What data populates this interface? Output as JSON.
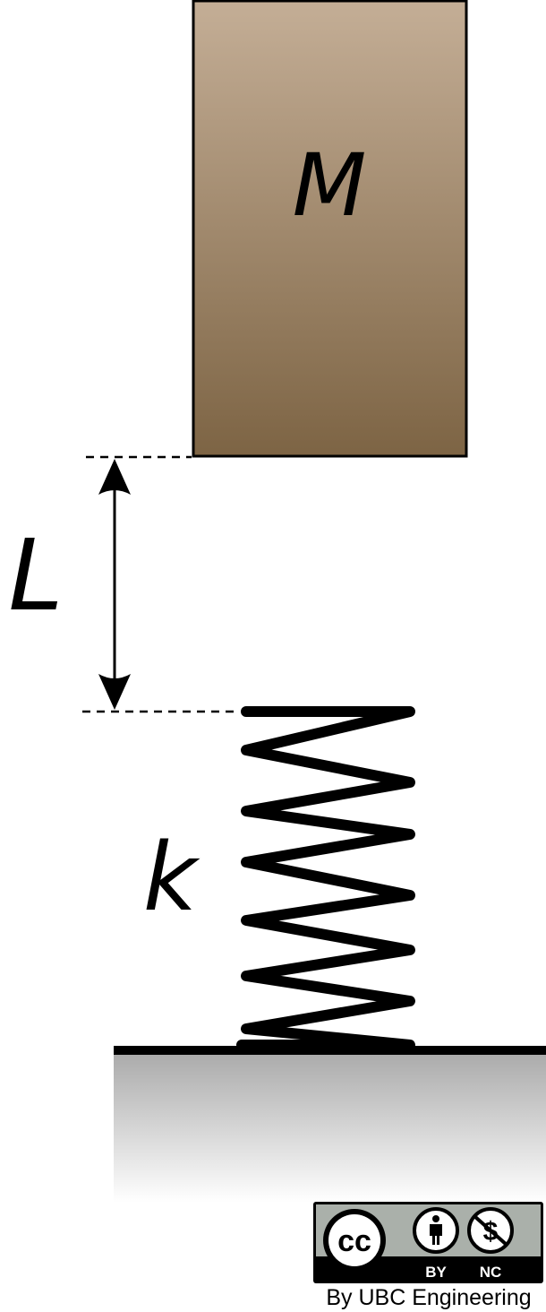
{
  "diagram": {
    "mass_label": "M",
    "gap_label": "L",
    "spring_label": "k",
    "colors": {
      "mass_top": "#c4ae96",
      "mass_bottom": "#7d6444",
      "ground_top": "#a9a9a9",
      "ground_bottom": "#ffffff",
      "stroke": "#000000"
    }
  },
  "license": {
    "cc_mark": "cc",
    "by_label": "BY",
    "nc_label": "NC",
    "icons": [
      "cc-icon",
      "attribution-icon",
      "noncommercial-icon"
    ],
    "credit": "By UBC Engineering"
  }
}
